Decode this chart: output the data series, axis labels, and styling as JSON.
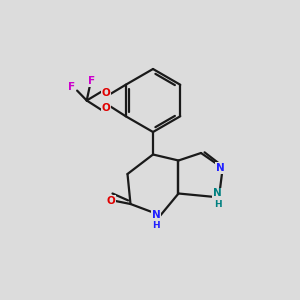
{
  "background_color": "#dcdcdc",
  "bond_color": "#1a1a1a",
  "atom_colors": {
    "O": "#e00000",
    "N": "#2020ff",
    "NH": "#2020ff",
    "N1H": "#008080",
    "F": "#cc00cc",
    "C": "#1a1a1a"
  },
  "bond_lw": 1.6,
  "font_size": 7.5
}
